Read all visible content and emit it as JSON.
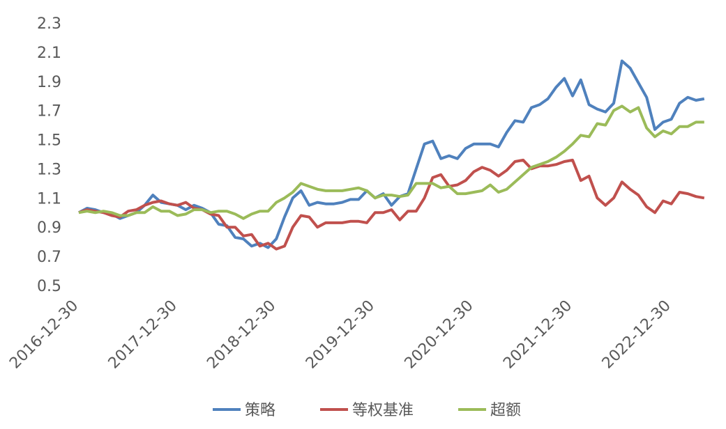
{
  "chart_data": {
    "type": "line",
    "categories": [
      "2016-12-30",
      null,
      null,
      null,
      null,
      null,
      null,
      null,
      null,
      null,
      null,
      null,
      "2017-12-30",
      null,
      null,
      null,
      null,
      null,
      null,
      null,
      null,
      null,
      null,
      null,
      "2018-12-30",
      null,
      null,
      null,
      null,
      null,
      null,
      null,
      null,
      null,
      null,
      null,
      "2019-12-30",
      null,
      null,
      null,
      null,
      null,
      null,
      null,
      null,
      null,
      null,
      null,
      "2020-12-30",
      null,
      null,
      null,
      null,
      null,
      null,
      null,
      null,
      null,
      null,
      null,
      "2021-12-30",
      null,
      null,
      null,
      null,
      null,
      null,
      null,
      null,
      null,
      null,
      null,
      "2022-12-30",
      null,
      null,
      null,
      null
    ],
    "series": [
      {
        "name": "策略",
        "color": "#4f81bd",
        "values": [
          1.0,
          1.03,
          1.02,
          1.0,
          0.99,
          0.96,
          0.98,
          1.0,
          1.05,
          1.12,
          1.07,
          1.06,
          1.05,
          1.02,
          1.05,
          1.03,
          1.0,
          0.92,
          0.91,
          0.83,
          0.82,
          0.77,
          0.79,
          0.76,
          0.82,
          0.97,
          1.1,
          1.15,
          1.05,
          1.07,
          1.06,
          1.06,
          1.07,
          1.09,
          1.09,
          1.15,
          1.1,
          1.13,
          1.05,
          1.11,
          1.13,
          1.3,
          1.47,
          1.49,
          1.37,
          1.39,
          1.37,
          1.44,
          1.47,
          1.47,
          1.47,
          1.45,
          1.55,
          1.63,
          1.62,
          1.72,
          1.74,
          1.78,
          1.86,
          1.92,
          1.8,
          1.91,
          1.74,
          1.71,
          1.69,
          1.75,
          2.04,
          1.99,
          1.89,
          1.79,
          1.57,
          1.62,
          1.64,
          1.75,
          1.79,
          1.77,
          1.78
        ]
      },
      {
        "name": "等权基准",
        "color": "#c0504d",
        "values": [
          1.0,
          1.02,
          1.01,
          1.0,
          0.98,
          0.97,
          1.01,
          1.02,
          1.05,
          1.07,
          1.08,
          1.06,
          1.05,
          1.07,
          1.03,
          1.02,
          0.99,
          0.98,
          0.9,
          0.9,
          0.84,
          0.85,
          0.77,
          0.79,
          0.75,
          0.77,
          0.9,
          0.98,
          0.97,
          0.9,
          0.93,
          0.93,
          0.93,
          0.94,
          0.94,
          0.93,
          1.0,
          1.0,
          1.02,
          0.95,
          1.01,
          1.01,
          1.1,
          1.24,
          1.26,
          1.18,
          1.19,
          1.22,
          1.28,
          1.31,
          1.29,
          1.25,
          1.29,
          1.35,
          1.36,
          1.3,
          1.32,
          1.32,
          1.33,
          1.35,
          1.36,
          1.22,
          1.25,
          1.1,
          1.05,
          1.1,
          1.21,
          1.16,
          1.12,
          1.04,
          1.0,
          1.08,
          1.06,
          1.14,
          1.13,
          1.11,
          1.1
        ]
      },
      {
        "name": "超额",
        "color": "#9bbb59",
        "values": [
          1.0,
          1.01,
          1.0,
          1.01,
          1.0,
          0.98,
          0.98,
          1.0,
          1.0,
          1.04,
          1.01,
          1.01,
          0.98,
          0.99,
          1.02,
          1.02,
          1.0,
          1.01,
          1.01,
          0.99,
          0.96,
          0.99,
          1.01,
          1.01,
          1.07,
          1.1,
          1.14,
          1.2,
          1.18,
          1.16,
          1.15,
          1.15,
          1.15,
          1.16,
          1.17,
          1.15,
          1.1,
          1.12,
          1.12,
          1.11,
          1.12,
          1.2,
          1.2,
          1.2,
          1.17,
          1.18,
          1.13,
          1.13,
          1.14,
          1.15,
          1.19,
          1.14,
          1.16,
          1.21,
          1.26,
          1.31,
          1.33,
          1.35,
          1.38,
          1.42,
          1.47,
          1.53,
          1.52,
          1.61,
          1.6,
          1.7,
          1.73,
          1.69,
          1.72,
          1.58,
          1.52,
          1.56,
          1.54,
          1.59,
          1.59,
          1.62,
          1.62
        ]
      }
    ],
    "ylim": [
      0.5,
      2.3
    ],
    "yticks": [
      0.5,
      0.7,
      0.9,
      1.1,
      1.3,
      1.5,
      1.7,
      1.9,
      2.1,
      2.3
    ],
    "grid": false,
    "legend": "bottom"
  }
}
